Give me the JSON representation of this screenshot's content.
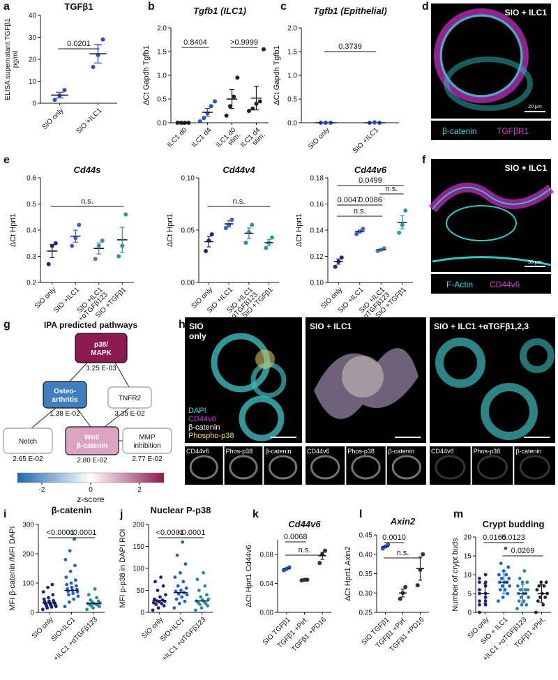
{
  "panel_labels": [
    "a",
    "b",
    "c",
    "d",
    "e",
    "f",
    "g",
    "h",
    "i",
    "j",
    "k",
    "l",
    "m"
  ],
  "chart_data": [
    {
      "type": "dot",
      "title": "TGFβ1",
      "y_label": [
        "ELISA supernatant TGFβ1",
        "pg/ml"
      ],
      "categories": [
        "SIO only",
        "SIO +ILC1"
      ],
      "colors": [
        "#2b4fc0",
        "#2b4fc0"
      ],
      "values": [
        [
          1.5,
          3.5,
          6
        ],
        [
          16.5,
          22,
          29
        ]
      ],
      "means": [
        3.7,
        22.5
      ],
      "errors": [
        1.3,
        4.2
      ],
      "ylim": [
        0,
        40
      ],
      "yticks": [
        0,
        10,
        20,
        30,
        40
      ],
      "comparisons": [
        {
          "groups": [
            0,
            1
          ],
          "label": "0.0201"
        }
      ]
    },
    {
      "type": "dot",
      "title": "Tgfb1 (ILC1)",
      "italic_title": true,
      "y_label": "ΔCt Gapdh Tgfb1",
      "categories": [
        "ILC1 d0",
        "ILC1 d4",
        [
          "ILC1 d0",
          "stim."
        ],
        [
          "ILC1 d4",
          "stim."
        ]
      ],
      "colors": [
        "#222222",
        "#2b4fc0",
        "#222222",
        "#222222"
      ],
      "values": [
        [
          0,
          0,
          0,
          0
        ],
        [
          0.03,
          0.1,
          0.2,
          0.35,
          0.45
        ],
        [
          0.15,
          0.35,
          0.55,
          0.95
        ],
        [
          0.25,
          0.3,
          0.4,
          0.45,
          1.55
        ]
      ],
      "means": [
        0,
        0.22,
        0.5,
        0.52
      ],
      "errors": [
        0,
        0.08,
        0.2,
        0.25
      ],
      "ylim": [
        0,
        2
      ],
      "yticks": [
        {
          "value": 0,
          "label": "0.0"
        },
        {
          "value": 0.5,
          "label": "0.5"
        },
        {
          "value": 1,
          "label": "1.0"
        },
        {
          "value": 1.5,
          "label": "1.5"
        },
        {
          "value": 2,
          "label": "2.0"
        }
      ],
      "comparisons": [
        {
          "groups": [
            0,
            1
          ],
          "label": "0.8404"
        },
        {
          "groups": [
            2,
            3
          ],
          "label": ">0.9999"
        }
      ]
    },
    {
      "type": "dot",
      "title": "Tgfb1 (Epithelial)",
      "italic_title": true,
      "y_label": "ΔCt Gapdh Tgfb1",
      "categories": [
        "SIO only",
        "SIO +ILC1"
      ],
      "colors": [
        "#2b4fc0",
        "#2b4fc0"
      ],
      "values": [
        [
          0,
          0,
          0
        ],
        [
          0,
          0.01,
          0
        ]
      ],
      "means": [
        0,
        0
      ],
      "errors": [
        0,
        0
      ],
      "ylim": [
        0,
        2
      ],
      "yticks": [
        {
          "value": 0,
          "label": "0.0"
        },
        {
          "value": 0.5,
          "label": "0.5"
        },
        {
          "value": 1,
          "label": "1.0"
        },
        {
          "value": 1.5,
          "label": "1.5"
        },
        {
          "value": 2,
          "label": "2.0"
        }
      ],
      "comparisons": [
        {
          "groups": [
            0,
            1
          ],
          "label": "0.3739"
        }
      ]
    },
    {
      "type": "dot",
      "title": "Cd44s",
      "italic_title": true,
      "y_label": "ΔCt Hprt1",
      "categories": [
        "SIO only",
        "SIO +ILC1",
        [
          "SIO +ILC1",
          "+αTGFβ123"
        ],
        "SIO +TGFβ1"
      ],
      "colors": [
        "#1b2a7a",
        "#3c62c8",
        "#3f82b5",
        "#2a9a9a"
      ],
      "values": [
        [
          0.27,
          0.34,
          0.35
        ],
        [
          0.34,
          0.37,
          0.42
        ],
        [
          0.29,
          0.34,
          0.36
        ],
        [
          0.3,
          0.34,
          0.46
        ]
      ],
      "means": [
        0.32,
        0.377,
        0.33,
        0.363
      ],
      "errors": [
        0.025,
        0.023,
        0.021,
        0.048
      ],
      "ylim": [
        0.2,
        0.6
      ],
      "yticks": [
        0.2,
        0.3,
        0.4,
        0.5,
        0.6
      ],
      "comparisons": [
        {
          "groups": [
            0,
            3
          ],
          "label": "n.s."
        }
      ]
    },
    {
      "type": "dot",
      "title": "Cd44v4",
      "italic_title": true,
      "y_label": "ΔCt Hprt1",
      "categories": [
        "SIO only",
        "SIO +ILC1",
        [
          "SIO +ILC1",
          "+αTGFβ123"
        ],
        "SIO +TGFβ1"
      ],
      "colors": [
        "#1b2a7a",
        "#3c62c8",
        "#3f82b5",
        "#2a9a9a"
      ],
      "values": [
        [
          0.03,
          0.04,
          0.046
        ],
        [
          0.052,
          0.055,
          0.06
        ],
        [
          0.038,
          0.048,
          0.055
        ],
        [
          0.033,
          0.038,
          0.043
        ]
      ],
      "means": [
        0.039,
        0.056,
        0.047,
        0.038
      ],
      "errors": [
        0.005,
        0.003,
        0.005,
        0.003
      ],
      "ylim": [
        0,
        0.1
      ],
      "yticks": [
        {
          "value": 0,
          "label": "0.00"
        },
        {
          "value": 0.05,
          "label": "0.05"
        },
        {
          "value": 0.1,
          "label": "0.10"
        }
      ],
      "comparisons": [
        {
          "groups": [
            0,
            3
          ],
          "label": "n.s."
        }
      ]
    },
    {
      "type": "dot",
      "title": "Cd44v6",
      "italic_title": true,
      "y_label": "ΔCt Hprt1",
      "categories": [
        "SIO only",
        "SIO +ILC1",
        [
          "SIO +ILC1",
          "+αTGFβ123"
        ],
        "SIO +TGFβ1"
      ],
      "colors": [
        "#1b2a7a",
        "#3c62c8",
        "#3f82b5",
        "#2a9a9a"
      ],
      "values": [
        [
          0.112,
          0.116,
          0.119
        ],
        [
          0.137,
          0.139,
          0.141
        ],
        [
          0.124,
          0.125,
          0.126
        ],
        [
          0.138,
          0.144,
          0.155
        ]
      ],
      "means": [
        0.116,
        0.139,
        0.125,
        0.146
      ],
      "errors": [
        0.002,
        0.001,
        0.0006,
        0.005
      ],
      "ylim": [
        0.1,
        0.18
      ],
      "yticks": [
        {
          "value": 0.1,
          "label": "0.10"
        },
        {
          "value": 0.12,
          "label": "0.12"
        },
        {
          "value": 0.14,
          "label": "0.14"
        },
        {
          "value": 0.16,
          "label": "0.16"
        },
        {
          "value": 0.18,
          "label": "0.18"
        }
      ],
      "comparisons": [
        {
          "groups": [
            0,
            3
          ],
          "label": "0.0499"
        },
        {
          "groups": [
            2,
            3
          ],
          "label": "n.s."
        },
        {
          "groups": [
            0,
            1
          ],
          "label": "0.0047"
        },
        {
          "groups": [
            1,
            2
          ],
          "label": "0.0086"
        },
        {
          "groups": [
            0,
            2
          ],
          "label": "n.s."
        }
      ]
    },
    {
      "type": "dot",
      "title": "β-catenin",
      "y_label": "MFI β-catenin /MFI DAPI",
      "categories": [
        "SIO only",
        "SIO+ILC1",
        "+ILC1 +αTGFβ123"
      ],
      "colors": [
        "#1a237e",
        "#1e5fd6",
        "#2a8aa0"
      ],
      "values": [
        [
          10,
          15,
          18,
          20,
          22,
          24,
          25,
          27,
          28,
          30,
          30,
          32,
          34,
          36,
          38,
          40,
          45,
          50,
          60,
          70,
          85,
          95
        ],
        [
          20,
          35,
          45,
          55,
          60,
          65,
          70,
          72,
          75,
          78,
          80,
          85,
          90,
          95,
          100,
          110,
          120,
          140,
          160,
          180,
          210,
          250
        ],
        [
          10,
          15,
          20,
          22,
          25,
          27,
          28,
          30,
          30,
          32,
          35,
          38,
          42,
          50,
          60,
          80
        ]
      ],
      "means": [
        32,
        75,
        30
      ],
      "ylim": [
        0,
        300
      ],
      "yticks": [
        0,
        100,
        200,
        300
      ],
      "comparisons": [
        {
          "groups": [
            0,
            1
          ],
          "label": "<0.0001"
        },
        {
          "groups": [
            1,
            2
          ],
          "label": "<0.0001"
        }
      ]
    },
    {
      "type": "dot",
      "title": "Nuclear P-p38",
      "y_label": "MFI p-p38 in DAPI ROI",
      "categories": [
        "SIO only",
        "SIO+ILC1",
        "+ILC1 +αTGFβ123"
      ],
      "colors": [
        "#1a237e",
        "#1e5fd6",
        "#2a8aa0"
      ],
      "values": [
        [
          5,
          10,
          15,
          18,
          20,
          22,
          24,
          25,
          26,
          28,
          30,
          35,
          40,
          50,
          60,
          70,
          80
        ],
        [
          10,
          20,
          25,
          30,
          35,
          40,
          42,
          45,
          48,
          50,
          55,
          60,
          70,
          80,
          90,
          110,
          130,
          160
        ],
        [
          5,
          10,
          15,
          18,
          20,
          22,
          24,
          26,
          28,
          30,
          35,
          40,
          50,
          60,
          75,
          90
        ]
      ],
      "means": [
        27,
        45,
        26
      ],
      "ylim": [
        0,
        200
      ],
      "yticks": [
        0,
        50,
        100,
        150,
        200
      ],
      "comparisons": [
        {
          "groups": [
            0,
            1
          ],
          "label": "<0.0001"
        },
        {
          "groups": [
            1,
            2
          ],
          "label": "<0.0001"
        }
      ]
    },
    {
      "type": "dot",
      "title": "Cd44v6",
      "italic_title": true,
      "y_label": "ΔCt Hprt1 Cd44v6",
      "categories": [
        "SIO TGFβ1",
        "TGFβ1 +Pirf.",
        "TGFβ1 +PD16"
      ],
      "colors": [
        "#2b4fc0",
        "#333333",
        "#333333"
      ],
      "values": [
        [
          0.058,
          0.06,
          0.062
        ],
        [
          0.044,
          0.045,
          0.045
        ],
        [
          0.068,
          0.08,
          0.085
        ]
      ],
      "means": [
        0.06,
        0.045,
        0.078
      ],
      "errors": [
        0.001,
        0.0005,
        0.005
      ],
      "ylim": [
        0,
        0.1
      ],
      "yticks": [
        {
          "value": 0,
          "label": "0.00"
        },
        {
          "value": 0.04,
          "label": "0.04"
        },
        {
          "value": 0.08,
          "label": "0.08"
        }
      ],
      "comparisons": [
        {
          "groups": [
            0,
            1
          ],
          "label": "0.0068"
        },
        {
          "groups": [
            0,
            2
          ],
          "label": "n.s."
        }
      ]
    },
    {
      "type": "dot",
      "title": "Axin2",
      "italic_title": true,
      "y_label": "ΔCt Hprt1 Axin2",
      "categories": [
        "SIO TGFβ1",
        "TGFβ1 +Pirf.",
        "TGFβ1 +PD16"
      ],
      "colors": [
        "#2b4fc0",
        "#333333",
        "#333333"
      ],
      "values": [
        [
          0.415,
          0.42,
          0.425
        ],
        [
          0.285,
          0.3,
          0.315
        ],
        [
          0.32,
          0.36,
          0.4
        ]
      ],
      "means": [
        0.42,
        0.3,
        0.363
      ],
      "errors": [
        0.003,
        0.01,
        0.03
      ],
      "ylim": [
        0.25,
        0.45
      ],
      "yticks": [
        {
          "value": 0.25,
          "label": "0.25"
        },
        {
          "value": 0.3,
          "label": "0.30"
        },
        {
          "value": 0.35,
          "label": "0.35"
        },
        {
          "value": 0.4,
          "label": "0.40"
        },
        {
          "value": 0.45,
          "label": "0.45"
        }
      ],
      "comparisons": [
        {
          "groups": [
            0,
            1
          ],
          "label": "0.0010"
        },
        {
          "groups": [
            0,
            2
          ],
          "label": "n.s."
        }
      ]
    },
    {
      "type": "dot",
      "title": "Crypt budding",
      "y_label": "Number of crypt buds",
      "categories": [
        "SIO only",
        "SIO + ILC1",
        "+ILC1 +αTGFβ123",
        "TGFβ1 +Pirf."
      ],
      "colors": [
        "#1a237e",
        "#1e5fd6",
        "#2a7fb0",
        "#222222"
      ],
      "values": [
        [
          0,
          2,
          2,
          3,
          3,
          4,
          5,
          5,
          6,
          7,
          8,
          8,
          9,
          10
        ],
        [
          3,
          4,
          5,
          6,
          6,
          7,
          7,
          8,
          8,
          8,
          9,
          9,
          10,
          10,
          11,
          12,
          13,
          17
        ],
        [
          1,
          2,
          2,
          3,
          3,
          4,
          4,
          5,
          5,
          5,
          6,
          6,
          6,
          7,
          8,
          8,
          9,
          11
        ],
        [
          0,
          2,
          3,
          4,
          4,
          5,
          5,
          6,
          7,
          7,
          8,
          8
        ]
      ],
      "means": [
        5,
        8,
        5,
        5
      ],
      "errors": [
        2.6,
        3,
        2.4,
        2.4
      ],
      "ylim": [
        0,
        20
      ],
      "yticks": [
        0,
        5,
        10,
        15,
        20
      ],
      "comparisons": [
        {
          "groups": [
            0,
            1
          ],
          "label": "0.0165"
        },
        {
          "groups": [
            1,
            2
          ],
          "label": "0.0123"
        },
        {
          "groups": [
            1,
            3
          ],
          "label": "0.0269"
        }
      ]
    }
  ],
  "pathway": {
    "title": "IPA predicted pathways",
    "nodes": [
      {
        "label": [
          "p38/",
          "MAPK"
        ],
        "p_value": "1.25 E-03"
      },
      {
        "label": [
          "Osteo-",
          "arthritis"
        ],
        "p_value": "1.38 E-02"
      },
      {
        "label": [
          "TNFR2"
        ],
        "p_value": "3.35 E-02"
      },
      {
        "label": [
          "Notch"
        ],
        "p_value": "2.65 E-02"
      },
      {
        "label": [
          "Wnt/",
          "β-catenin"
        ],
        "p_value": "2.80 E-02"
      },
      {
        "label": [
          "MMP",
          "inhibition"
        ],
        "p_value": "2.77 E-02"
      }
    ],
    "colorbar": {
      "label": "z-score",
      "lim": [
        -3,
        3
      ],
      "ticks": [
        -2,
        0,
        2
      ]
    }
  },
  "images": {
    "d": {
      "title": "SIO + ILC1",
      "scale_bar": "20 µm",
      "stains": [
        "β-catenin",
        "TGFβR1"
      ]
    },
    "f": {
      "title": "SIO + ILC1",
      "scale_bar": "50 µm",
      "stains": [
        "F-Actin",
        "CD44v6"
      ]
    },
    "h": {
      "stains": [
        "DAPI",
        "CD44v6",
        "β-catenin",
        "Phospho-p38"
      ],
      "panels": [
        {
          "title": [
            "SIO",
            "only"
          ],
          "tiles": [
            "CD44v6",
            "Phos-p38",
            "β-catenin"
          ]
        },
        {
          "title": [
            "SIO + ILC1"
          ],
          "tiles": [
            "CD44v6",
            "Phos-p38",
            "β-catenin"
          ]
        },
        {
          "title": [
            "SIO + ILC1 +αTGFβ1,2,3"
          ],
          "tiles": [
            "CD44v6",
            "Phos-p38",
            "β-catenin"
          ]
        }
      ]
    }
  }
}
